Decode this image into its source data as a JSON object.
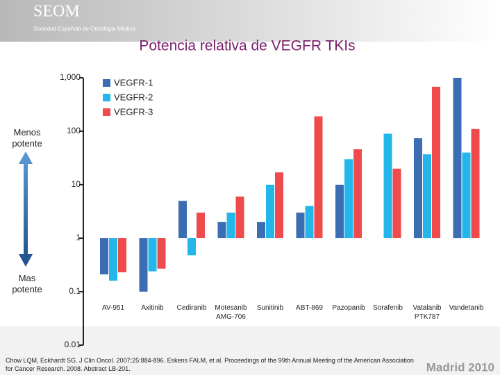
{
  "branding": {
    "logo": "SEOM",
    "society": "Sociedad Española de Oncología Médica",
    "event": "Madrid 2010"
  },
  "chart_data": {
    "type": "bar",
    "title": "Potencia relativa de VEGFR TKIs",
    "y_label_top": "Menos potente",
    "y_label_bottom": "Mas potente",
    "categories": [
      "AV-951",
      "Axitinib",
      "Cediranib",
      "Motesanib AMG-706",
      "Sunitinib",
      "ABT-869",
      "Pazopanib",
      "Sorafenib",
      "Vatalanib PTK787",
      "Vandetanib"
    ],
    "series": [
      {
        "name": "VEGFR-1",
        "color": "#3b6db3",
        "values": [
          0.21,
          0.1,
          5,
          2,
          2,
          3,
          10,
          null,
          74,
          1000
        ]
      },
      {
        "name": "VEGFR-2",
        "color": "#22b6ea",
        "values": [
          0.16,
          0.24,
          0.48,
          3,
          10,
          4,
          30,
          90,
          37,
          40
        ]
      },
      {
        "name": "VEGFR-3",
        "color": "#ef4a4c",
        "values": [
          0.23,
          0.27,
          3,
          6,
          17,
          190,
          46,
          20,
          680,
          110
        ]
      }
    ],
    "log": true,
    "ylim": [
      0.01,
      1000
    ],
    "yticks": [
      {
        "value": 1000,
        "label": "1,000"
      },
      100,
      10,
      1,
      0.1,
      0.01
    ],
    "source": "Chow LQM, Eckhardt SG. J Clin Oncol. 2007;25:884-896. Eskens FALM, et al. Proceedings of the 99th Annual Meeting of the American Association for Cancer Research. 2008. Abstract LB-201."
  }
}
